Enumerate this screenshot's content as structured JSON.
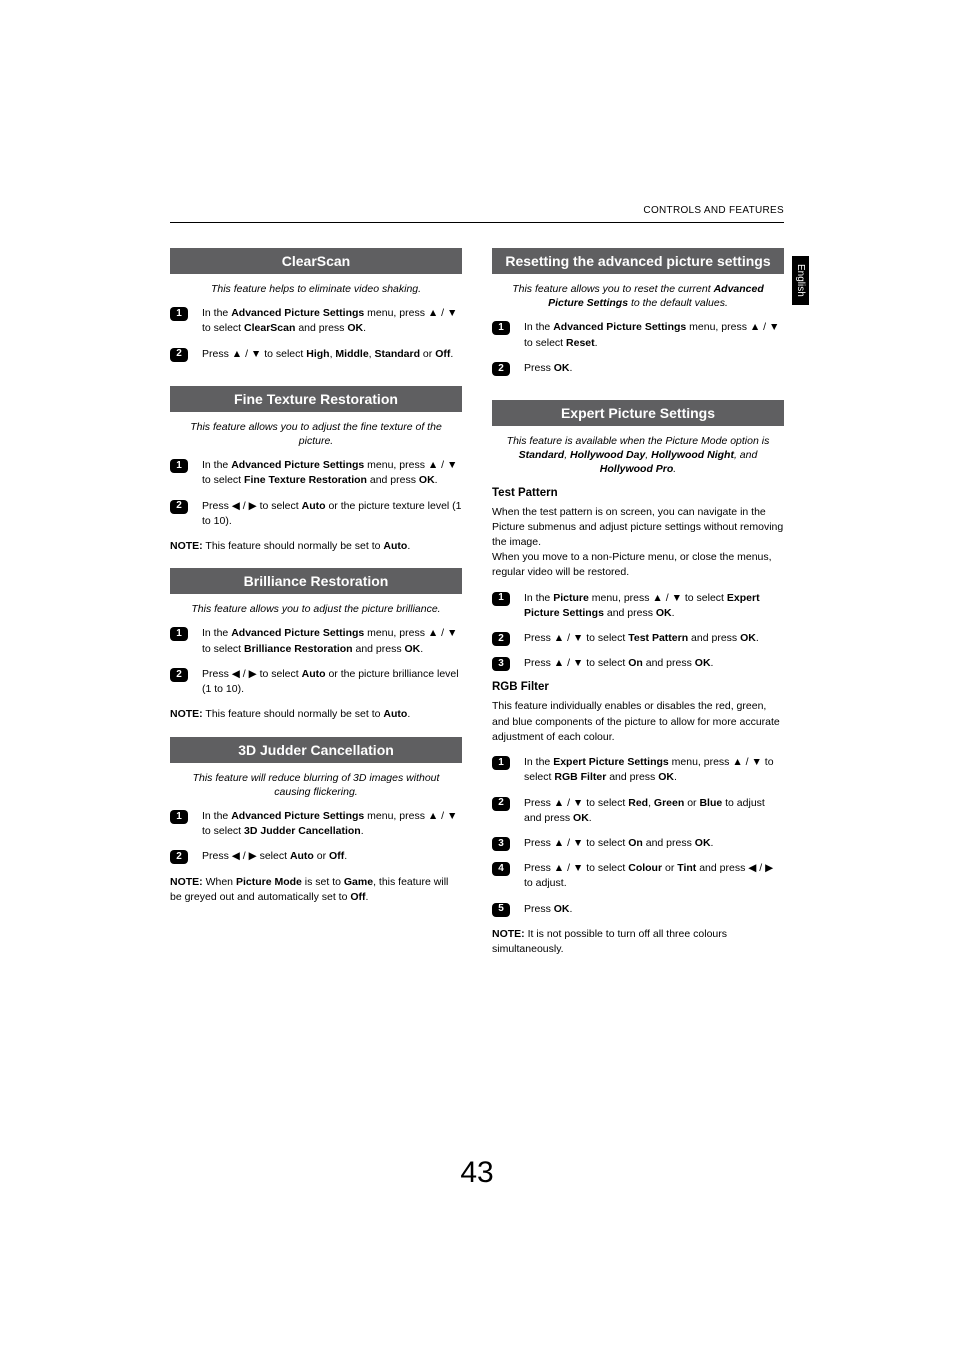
{
  "header": "CONTROLS AND FEATURES",
  "side_tab": "English",
  "page_number": "43",
  "arrows": {
    "up": "▲",
    "down": "▼",
    "left": "◀",
    "right": "▶"
  },
  "left": {
    "clearscan": {
      "title": "ClearScan",
      "subtitle": "This feature helps to eliminate video shaking.",
      "step1": "In the <b>Advanced Picture Settings</b> menu, press ▲ / ▼ to select <b>ClearScan</b> and press <b>OK</b>.",
      "step2": "Press ▲ / ▼ to select <b>High</b>, <b>Middle</b>, <b>Standard</b> or <b>Off</b>."
    },
    "finetex": {
      "title": "Fine Texture Restoration",
      "subtitle": "This feature allows you to adjust the fine texture of the picture.",
      "step1": "In the <b>Advanced Picture Settings</b> menu, press ▲ / ▼ to select <b>Fine Texture Restoration</b> and press <b>OK</b>.",
      "step2": "Press ◀ / ▶ to select <b>Auto</b> or the picture texture level (1 to 10).",
      "note": "<b>NOTE:</b> This feature should normally be set to <b>Auto</b>."
    },
    "brilliance": {
      "title": "Brilliance Restoration",
      "subtitle": "This feature allows you to adjust the picture brilliance.",
      "step1": "In the <b>Advanced Picture Settings</b> menu, press ▲ / ▼ to select <b>Brilliance Restoration</b> and press <b>OK</b>.",
      "step2": "Press ◀ / ▶ to select <b>Auto</b> or the picture brilliance level (1 to 10).",
      "note": "<b>NOTE:</b> This feature should normally be set to <b>Auto</b>."
    },
    "judder": {
      "title": "3D Judder Cancellation",
      "subtitle": "This feature will reduce blurring of 3D images without causing flickering.",
      "step1": "In the <b>Advanced Picture Settings</b> menu, press ▲ / ▼ to select <b>3D Judder Cancellation</b>.",
      "step2": "Press ◀ / ▶ select <b>Auto</b> or <b>Off</b>.",
      "note": "<b>NOTE:</b> When <b>Picture Mode</b> is set to <b>Game</b>, this feature will be greyed out and automatically set to <b>Off</b>."
    }
  },
  "right": {
    "reset": {
      "title": "Resetting the advanced picture settings",
      "subtitle": "<i>This feature allows you to reset the current</i> <b>Advanced Picture Settings</b> <i>to the default values.</i>",
      "step1": "In the <b>Advanced Picture Settings</b> menu, press ▲ / ▼ to select <b>Reset</b>.",
      "step2": "Press <b>OK</b>."
    },
    "expert": {
      "title": "Expert Picture Settings",
      "subtitle": "<i>This feature is available when the Picture Mode option is</i> <b>Standard</b><i>,</i> <b>Hollywood Day</b><i>,</i> <b>Hollywood Night</b><i>, and</i> <b>Hollywood Pro</b><i>.</i>",
      "testpattern_head": "Test Pattern",
      "testpattern_para": "When the test pattern is on screen, you can navigate in the Picture submenus and adjust picture settings without removing the image.<br>When you move to a non-Picture menu, or close the menus, regular video will be restored.",
      "tp_step1": "In the <b>Picture</b> menu, press ▲ / ▼ to select <b>Expert Picture Settings</b> and press <b>OK</b>.",
      "tp_step2": "Press ▲ / ▼ to select <b>Test Pattern</b> and press <b>OK</b>.",
      "tp_step3": "Press ▲ / ▼ to select <b>On</b> and press <b>OK</b>.",
      "rgb_head": "RGB Filter",
      "rgb_para": "This feature individually enables or disables the red, green, and blue components of the picture to allow for more accurate adjustment of each colour.",
      "rgb_step1": "In the <b>Expert Picture Settings</b> menu, press ▲ / ▼ to select <b>RGB Filter</b> and press <b>OK</b>.",
      "rgb_step2": "Press ▲ / ▼ to select <b>Red</b>, <b>Green</b> or <b>Blue</b> to adjust and press <b>OK</b>.",
      "rgb_step3": "Press ▲ / ▼ to select <b>On</b> and press <b>OK</b>.",
      "rgb_step4": "Press ▲ / ▼ to select <b>Colour</b> or <b>Tint</b> and press ◀ / ▶ to adjust.",
      "rgb_step5": "Press <b>OK</b>.",
      "rgb_note": "<b>NOTE:</b> It is not possible to turn off all three colours simultaneously."
    }
  }
}
